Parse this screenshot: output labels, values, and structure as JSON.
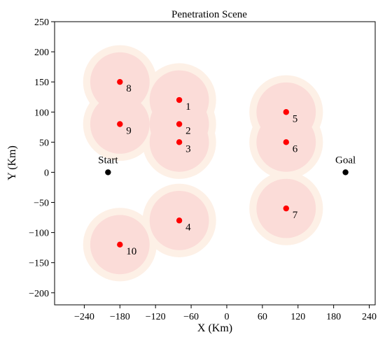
{
  "chart_data": {
    "type": "scatter",
    "title": "Penetration Scene",
    "xlabel": "X (Km)",
    "ylabel": "Y (Km)",
    "xlim": [
      -290,
      250
    ],
    "ylim": [
      -220,
      250
    ],
    "xticks": [
      -240,
      -180,
      -120,
      -60,
      0,
      60,
      120,
      180,
      240
    ],
    "yticks": [
      -200,
      -150,
      -100,
      -50,
      0,
      50,
      100,
      150,
      200,
      250
    ],
    "xtick_labels": [
      "−240",
      "−180",
      "−120",
      "−60",
      "0",
      "60",
      "120",
      "180",
      "240"
    ],
    "ytick_labels": [
      "−200",
      "−150",
      "−100",
      "−50",
      "0",
      "50",
      "100",
      "150",
      "200",
      "250"
    ],
    "grid": false,
    "threats": [
      {
        "label": "1",
        "x": -80,
        "y": 120,
        "inner_radius": 50,
        "outer_radius": 62
      },
      {
        "label": "2",
        "x": -80,
        "y": 80,
        "inner_radius": 50,
        "outer_radius": 62
      },
      {
        "label": "3",
        "x": -80,
        "y": 50,
        "inner_radius": 50,
        "outer_radius": 62
      },
      {
        "label": "4",
        "x": -80,
        "y": -80,
        "inner_radius": 50,
        "outer_radius": 62
      },
      {
        "label": "5",
        "x": 100,
        "y": 100,
        "inner_radius": 50,
        "outer_radius": 62
      },
      {
        "label": "6",
        "x": 100,
        "y": 50,
        "inner_radius": 50,
        "outer_radius": 62
      },
      {
        "label": "7",
        "x": 100,
        "y": -60,
        "inner_radius": 50,
        "outer_radius": 62
      },
      {
        "label": "8",
        "x": -180,
        "y": 150,
        "inner_radius": 50,
        "outer_radius": 62
      },
      {
        "label": "9",
        "x": -180,
        "y": 80,
        "inner_radius": 50,
        "outer_radius": 62
      },
      {
        "label": "10",
        "x": -180,
        "y": -120,
        "inner_radius": 50,
        "outer_radius": 62
      }
    ],
    "endpoints": [
      {
        "label": "Start",
        "x": -200,
        "y": 0
      },
      {
        "label": "Goal",
        "x": 200,
        "y": 0
      }
    ],
    "colors": {
      "threat_point": "#ff0000",
      "threat_inner": "#fbdcd8",
      "threat_outer": "#fdf0e6",
      "endpoint": "#000000"
    }
  }
}
